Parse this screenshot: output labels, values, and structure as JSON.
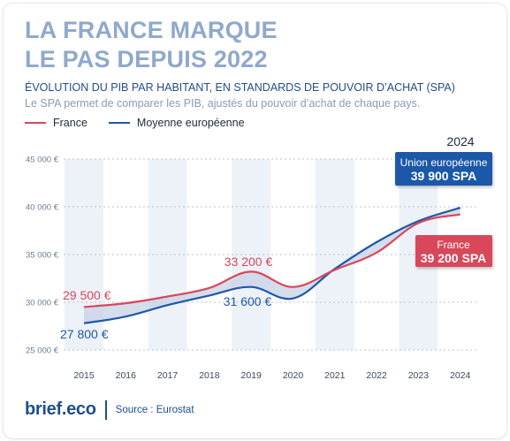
{
  "title_line1": "LA FRANCE MARQUE",
  "title_line2": "LE PAS DEPUIS 2022",
  "subtitle": "ÉVOLUTION DU PIB PAR HABITANT, EN STANDARDS DE POUVOIR D’ACHAT (SPA)",
  "note": "Le SPA permet de comparer les PIB, ajustés du pouvoir d’achat de chaque pays.",
  "legend": [
    {
      "name": "France",
      "color": "#d9475a"
    },
    {
      "name": "Moyenne européenne",
      "color": "#1f58a8"
    }
  ],
  "brand": "brief.eco",
  "source": "Source : Eurostat",
  "colors": {
    "france": "#d9475a",
    "eu": "#1f58a8",
    "area_fill": "#c5d2e6",
    "column_band": "#edf2f8",
    "grid": "#b9c3d1",
    "title": "#8fa9cc"
  },
  "chart_data": {
    "type": "line",
    "x": [
      2015,
      2016,
      2017,
      2018,
      2019,
      2020,
      2021,
      2022,
      2023,
      2024
    ],
    "series": [
      {
        "name": "France",
        "values": [
          29500,
          29900,
          30600,
          31500,
          33200,
          31600,
          33400,
          35200,
          38300,
          39200
        ]
      },
      {
        "name": "Moyenne européenne",
        "values": [
          27800,
          28500,
          29700,
          30700,
          31600,
          30400,
          33500,
          36300,
          38500,
          39900
        ]
      }
    ],
    "yticks": [
      "45 000 €",
      "40 000 €",
      "35 000 €",
      "30 000 €",
      "25 000 €"
    ],
    "ytick_values": [
      45000,
      40000,
      35000,
      30000,
      25000
    ],
    "ylim": [
      25000,
      45000
    ],
    "grid": true,
    "year_label": "2024",
    "annotations": {
      "france_2015": "29 500 €",
      "france_2019": "33 200 €",
      "eu_2015": "27 800 €",
      "eu_2019": "31 600 €"
    },
    "callouts": {
      "eu_name": "Union européenne",
      "eu_value": "39 900 SPA",
      "france_name": "France",
      "france_value": "39 200 SPA"
    }
  }
}
